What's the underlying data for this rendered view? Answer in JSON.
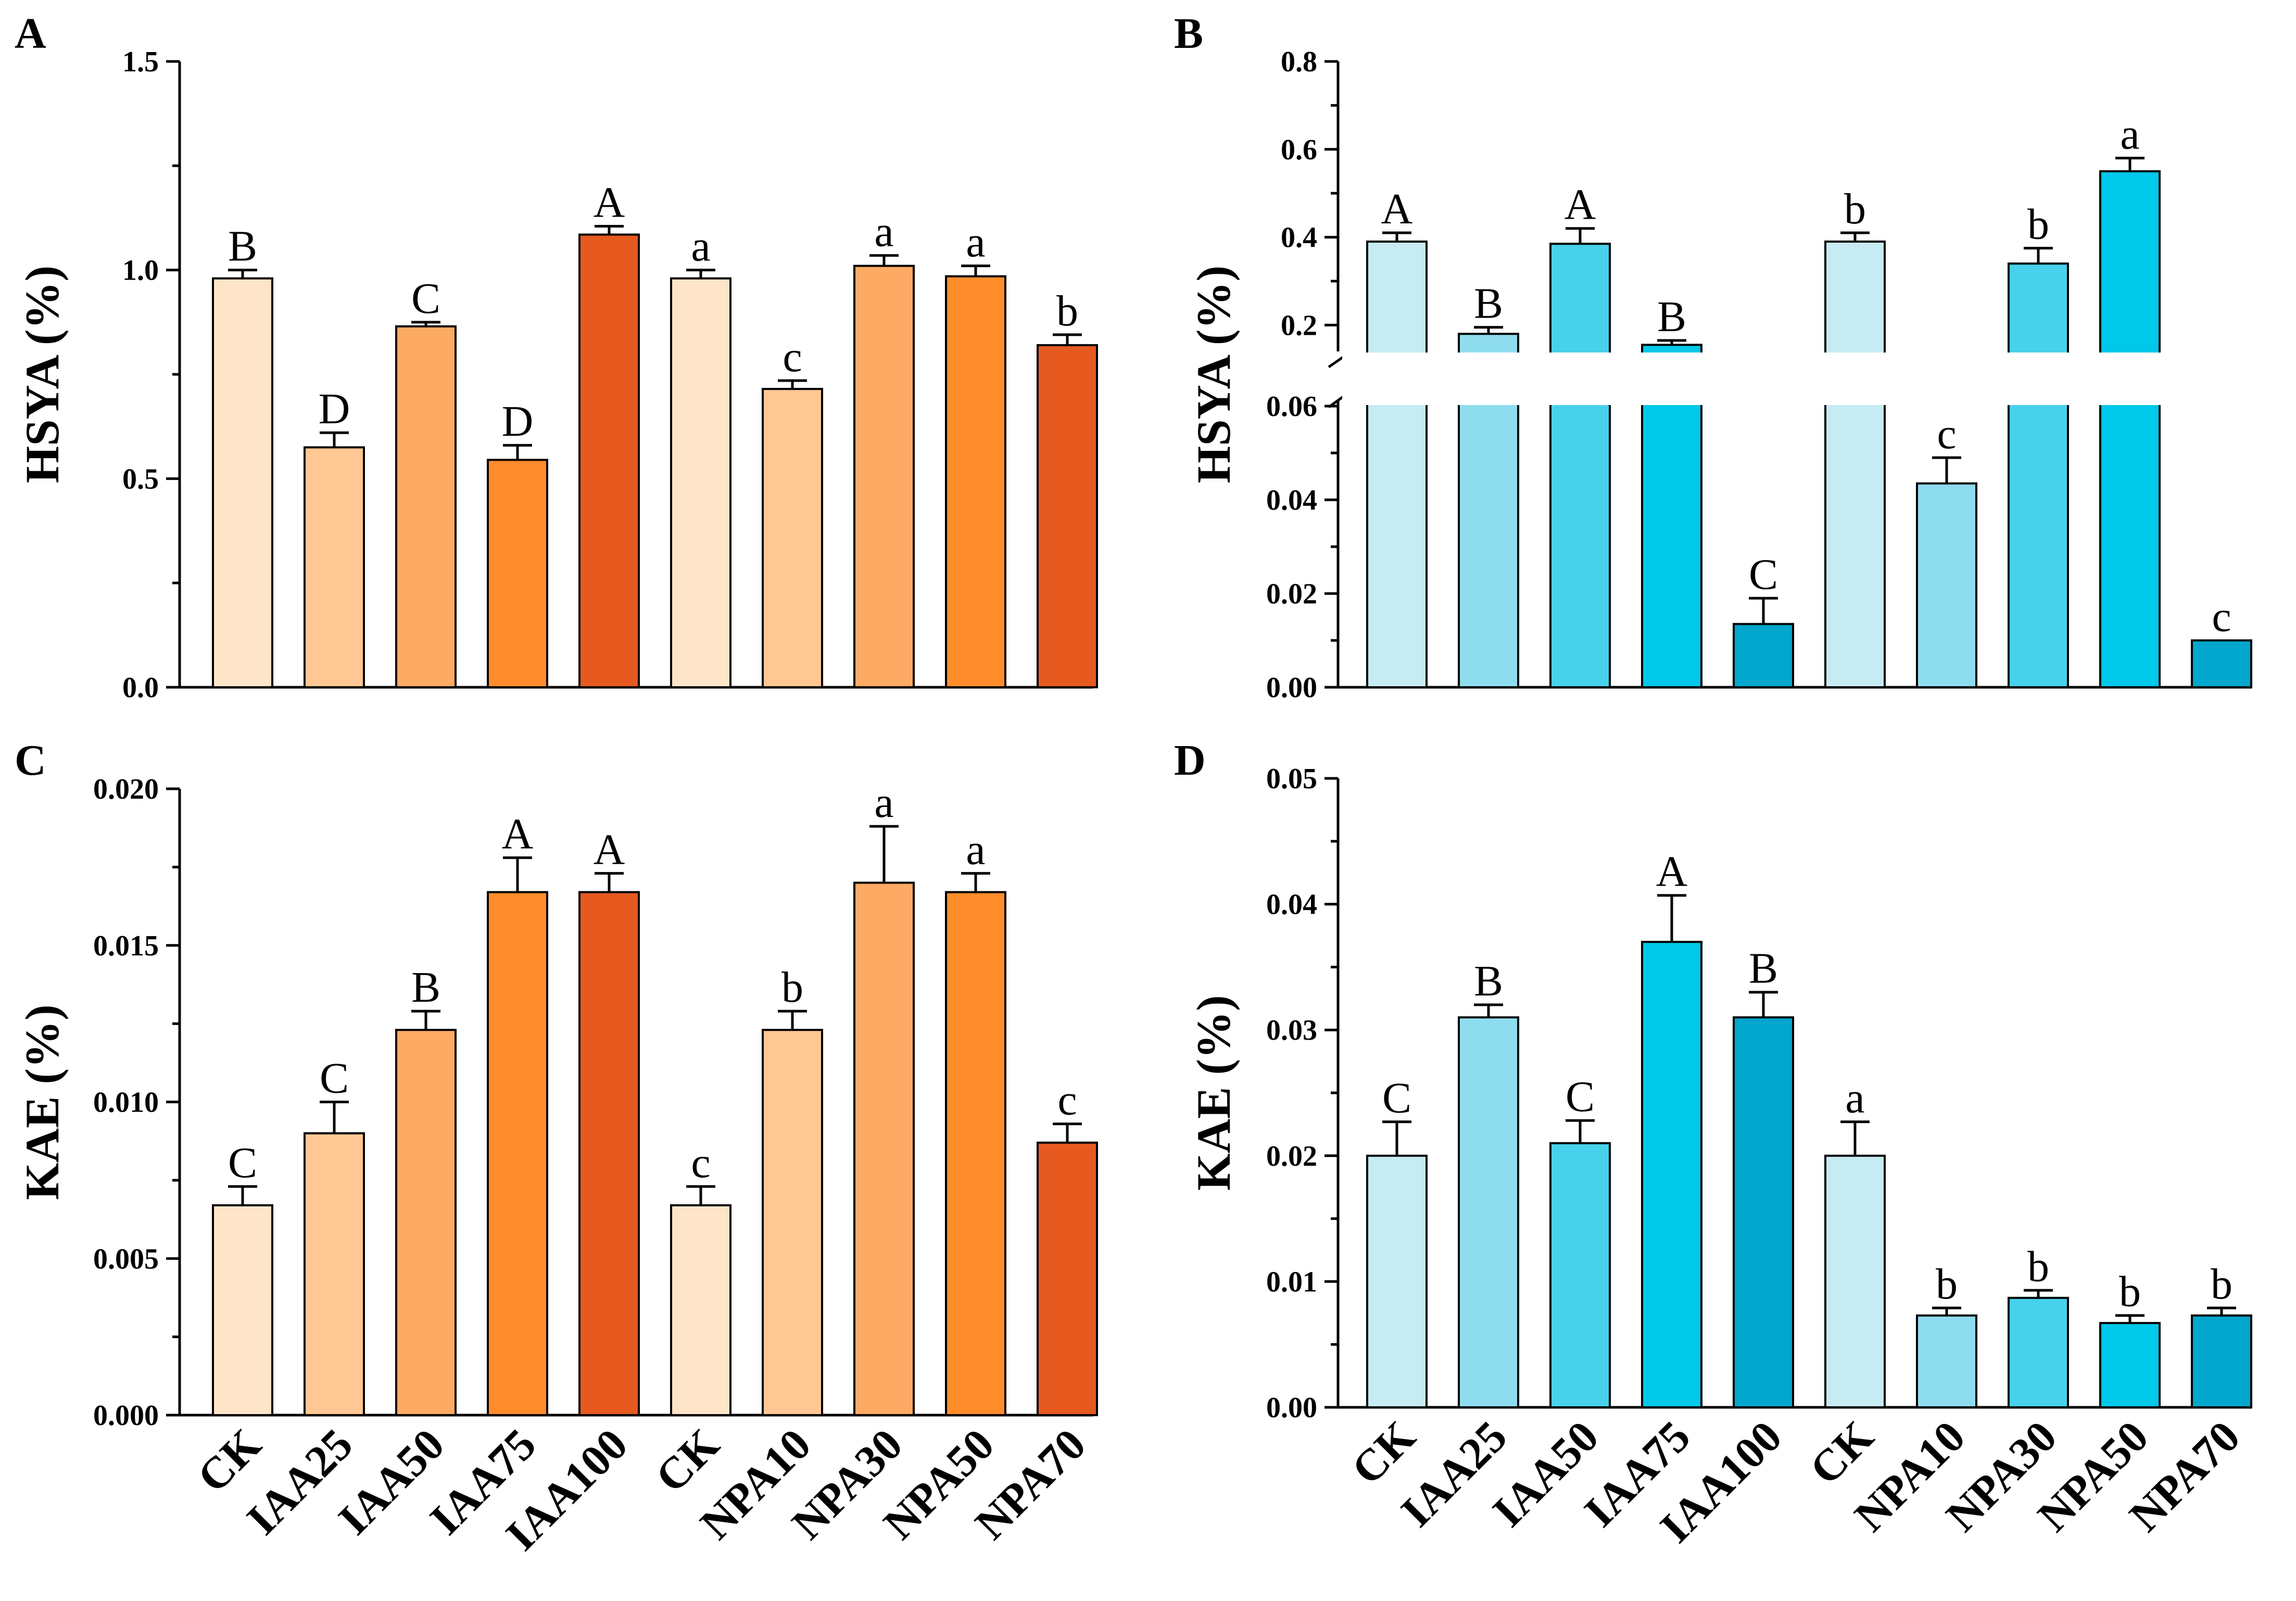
{
  "colors": {
    "orange": [
      "#FEE5C9",
      "#FFC793",
      "#FDAA64",
      "#FE8C2B",
      "#E65A20"
    ],
    "blue": [
      "#C6EBF3",
      "#8EDDEE",
      "#48D1EB",
      "#00C8E9",
      "#03A6CC"
    ]
  },
  "chart_data": [
    {
      "panel": "A",
      "type": "bar",
      "ylabel": "HSYA (%)",
      "ylim": [
        0,
        1.5
      ],
      "yticks": [
        0.0,
        0.5,
        1.0,
        1.5
      ],
      "ytick_labels": [
        "0.0",
        "0.5",
        "1.0",
        "1.5"
      ],
      "palette": "orange",
      "categories": [
        "CK",
        "IAA25",
        "IAA50",
        "IAA75",
        "IAA100",
        "CK",
        "NPA10",
        "NPA30",
        "NPA50",
        "NPA70"
      ],
      "values": [
        0.98,
        0.575,
        0.865,
        0.545,
        1.085,
        0.98,
        0.715,
        1.01,
        0.985,
        0.82
      ],
      "errors": [
        0.02,
        0.035,
        0.01,
        0.035,
        0.02,
        0.02,
        0.02,
        0.025,
        0.025,
        0.025
      ],
      "labels": [
        "B",
        "D",
        "C",
        "D",
        "A",
        "a",
        "c",
        "a",
        "a",
        "b"
      ]
    },
    {
      "panel": "B",
      "type": "bar",
      "ylabel": "HSYA (%)",
      "broken_axis": true,
      "lower": {
        "ylim": [
          0,
          0.06
        ],
        "yticks": [
          0.0,
          0.02,
          0.04,
          0.06
        ],
        "ytick_labels": [
          "0.00",
          "0.02",
          "0.04",
          "0.06"
        ]
      },
      "upper": {
        "ylim": [
          0.14,
          0.8
        ],
        "yticks": [
          0.2,
          0.4,
          0.6,
          0.8
        ],
        "ytick_labels": [
          "0.2",
          "0.4",
          "0.6",
          "0.8"
        ]
      },
      "palette": "blue",
      "categories": [
        "CK",
        "IAA25",
        "IAA50",
        "IAA75",
        "IAA100",
        "CK",
        "NPA10",
        "NPA30",
        "NPA50",
        "NPA70"
      ],
      "values": [
        0.39,
        0.18,
        0.385,
        0.155,
        0.0135,
        0.39,
        0.0435,
        0.34,
        0.55,
        0.01
      ],
      "errors": [
        0.02,
        0.015,
        0.035,
        0.01,
        0.0055,
        0.02,
        0.0055,
        0.035,
        0.03,
        0
      ],
      "labels": [
        "A",
        "B",
        "A",
        "B",
        "C",
        "b",
        "c",
        "b",
        "a",
        "c"
      ]
    },
    {
      "panel": "C",
      "type": "bar",
      "ylabel": "KAE (%)",
      "ylim": [
        0,
        0.02
      ],
      "yticks": [
        0.0,
        0.005,
        0.01,
        0.015,
        0.02
      ],
      "ytick_labels": [
        "0.000",
        "0.005",
        "0.010",
        "0.015",
        "0.020"
      ],
      "palette": "orange",
      "categories": [
        "CK",
        "IAA25",
        "IAA50",
        "IAA75",
        "IAA100",
        "CK",
        "NPA10",
        "NPA30",
        "NPA50",
        "NPA70"
      ],
      "values": [
        0.0067,
        0.009,
        0.0123,
        0.0167,
        0.0167,
        0.0067,
        0.0123,
        0.017,
        0.0167,
        0.0087
      ],
      "errors": [
        0.0006,
        0.001,
        0.0006,
        0.0011,
        0.0006,
        0.0006,
        0.0006,
        0.0018,
        0.0006,
        0.0006
      ],
      "labels": [
        "C",
        "C",
        "B",
        "A",
        "A",
        "c",
        "b",
        "a",
        "a",
        "c"
      ]
    },
    {
      "panel": "D",
      "type": "bar",
      "ylabel": "KAE (%)",
      "ylim": [
        0,
        0.05
      ],
      "yticks": [
        0.0,
        0.01,
        0.02,
        0.03,
        0.04,
        0.05
      ],
      "ytick_labels": [
        "0.00",
        "0.01",
        "0.02",
        "0.03",
        "0.04",
        "0.05"
      ],
      "palette": "blue",
      "categories": [
        "CK",
        "IAA25",
        "IAA50",
        "IAA75",
        "IAA100",
        "CK",
        "NPA10",
        "NPA30",
        "NPA50",
        "NPA70"
      ],
      "values": [
        0.02,
        0.031,
        0.021,
        0.037,
        0.031,
        0.02,
        0.0073,
        0.0087,
        0.0067,
        0.0073
      ],
      "errors": [
        0.0027,
        0.001,
        0.0018,
        0.0037,
        0.002,
        0.0027,
        0.0006,
        0.0006,
        0.0006,
        0.0006
      ],
      "labels": [
        "C",
        "B",
        "C",
        "A",
        "B",
        "a",
        "b",
        "b",
        "b",
        "b"
      ]
    }
  ]
}
